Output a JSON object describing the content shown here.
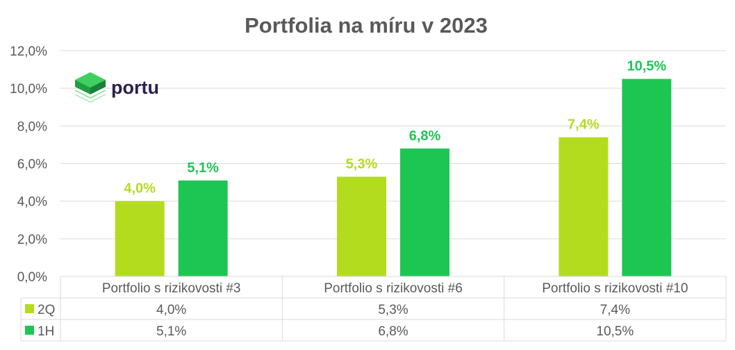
{
  "logo_text": "portu",
  "chart_data": {
    "type": "bar",
    "title": "Portfolia na míru v 2023",
    "categories": [
      "Portfolio s rizikovosti #3",
      "Portfolio s rizikovosti #6",
      "Portfolio s rizikovosti #10"
    ],
    "series": [
      {
        "name": "2Q",
        "color": "#B4DC1E",
        "values": [
          4.0,
          5.3,
          7.4
        ],
        "labels": [
          "4,0%",
          "5,3%",
          "7,4%"
        ]
      },
      {
        "name": "1H",
        "color": "#1DC653",
        "values": [
          5.1,
          6.8,
          10.5
        ],
        "labels": [
          "5,1%",
          "6,8%",
          "10,5%"
        ]
      }
    ],
    "yticks": [
      "0,0%",
      "2,0%",
      "4,0%",
      "6,0%",
      "8,0%",
      "10,0%",
      "12,0%"
    ],
    "ylim": [
      0,
      12
    ],
    "grid": true,
    "legend": "data-table"
  }
}
